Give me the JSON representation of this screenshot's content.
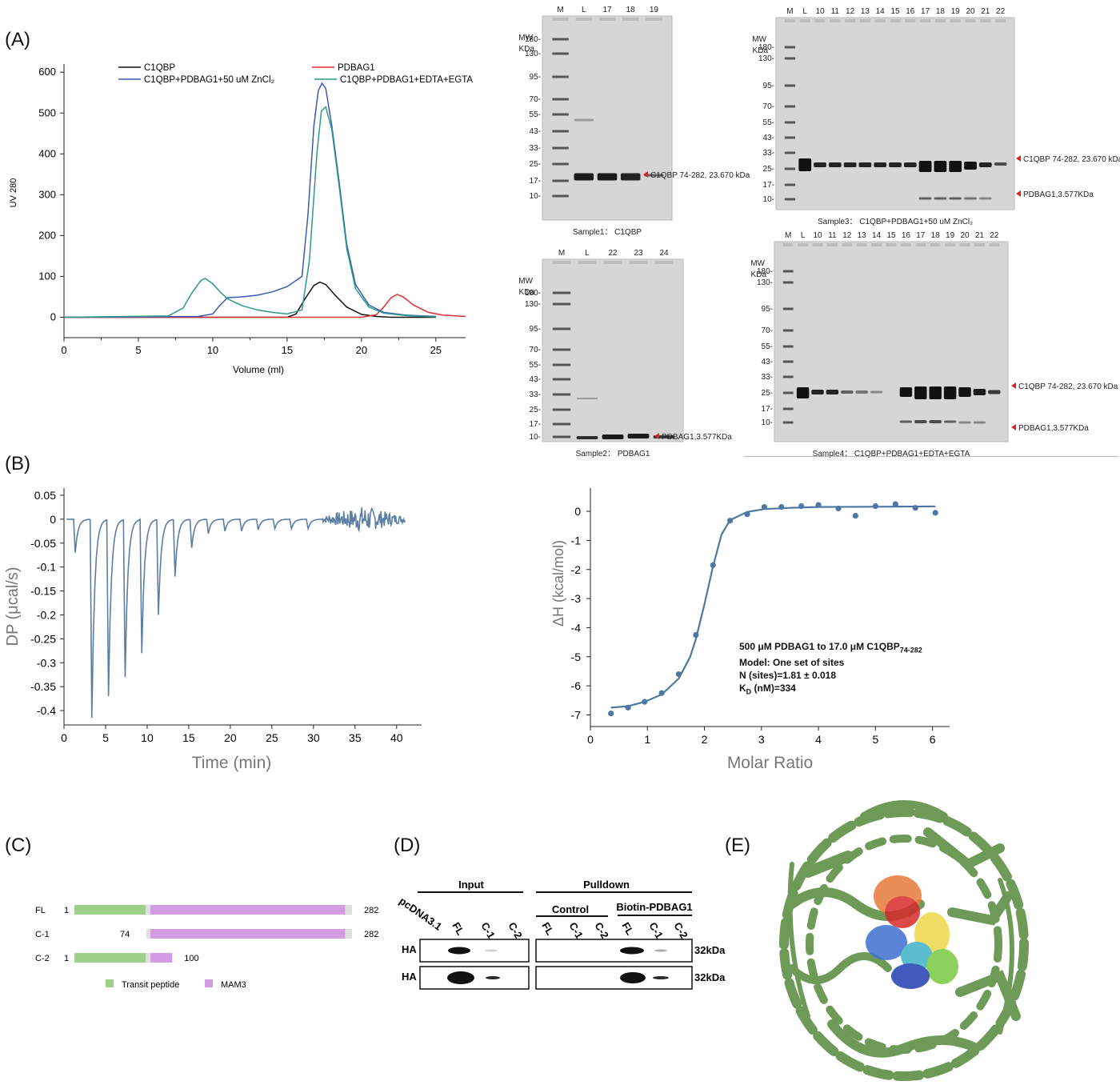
{
  "panels": {
    "A": "(A)",
    "B": "(B)",
    "C": "(C)",
    "D": "(D)",
    "E": "(E)"
  },
  "panel_a": {
    "legend": [
      "C1QBP",
      "PDBAG1",
      "C1QBP+PDBAG1+50 uM ZnCl₂",
      "C1QBP+PDBAG1+EDTA+EGTA"
    ],
    "colors": {
      "c1qbp": "#111111",
      "pdbag1": "#e03030",
      "zn": "#3a5bb5",
      "edta": "#2a9a8a"
    }
  },
  "gels": {
    "mw_header": "MW",
    "kda_header": "KDa",
    "gel1": {
      "lanes": [
        "M",
        "L",
        "17",
        "18",
        "19"
      ],
      "mw": [
        "180-",
        "130-",
        "95-",
        "70-",
        "55-",
        "43-",
        "33-",
        "25-",
        "17-",
        "10-"
      ],
      "annot": [
        "C1QBP 74-282, 23.670 kDa"
      ],
      "caption": "Sample1： C1QBP"
    },
    "gel2": {
      "lanes": [
        "M",
        "L",
        "22",
        "23",
        "24"
      ],
      "mw": [
        "180-",
        "130-",
        "95-",
        "70-",
        "55-",
        "43-",
        "33-",
        "25-",
        "17-",
        "10-"
      ],
      "annot": [
        "PDBAG1,3.577KDa"
      ],
      "caption": "Sample2： PDBAG1"
    },
    "gel3": {
      "lanes": [
        "M",
        "L",
        "10",
        "11",
        "12",
        "13",
        "14",
        "15",
        "16",
        "17",
        "18",
        "19",
        "20",
        "21",
        "22"
      ],
      "mw": [
        "180-",
        "130-",
        "95-",
        "70-",
        "55-",
        "43-",
        "33-",
        "25-",
        "17-",
        "10-"
      ],
      "annot": [
        "C1QBP 74-282, 23.670 kDa",
        "PDBAG1,3.577KDa"
      ],
      "caption": "Sample3： C1QBP+PDBAG1+50 uM ZnCl₂"
    },
    "gel4": {
      "lanes": [
        "M",
        "L",
        "10",
        "11",
        "12",
        "13",
        "14",
        "15",
        "16",
        "17",
        "18",
        "19",
        "20",
        "21",
        "22"
      ],
      "mw": [
        "180-",
        "130-",
        "95-",
        "70-",
        "55-",
        "43-",
        "33-",
        "25-",
        "17-",
        "10-"
      ],
      "annot": [
        "C1QBP 74-282, 23.670 kDa",
        "PDBAG1,3.577KDa"
      ],
      "caption": "Sample4： C1QBP+PDBAG1+EDTA+EGTA"
    }
  },
  "itc": {
    "annot_line1_a": "500 μM PDBAG1 to 17.0 μM C1QBP",
    "annot_line1_sub": "74-282",
    "annot_line2": "Model: One set of sites",
    "annot_line3": "N (sites)=1.81 ± 0.018",
    "annot_line4_k": "K",
    "annot_line4_sub": "D",
    "annot_line4_rest": " (nM)=334"
  },
  "panel_c": {
    "rows": [
      {
        "label": "FL",
        "start": "1",
        "end": "282"
      },
      {
        "label": "C-1",
        "start": "74",
        "end": "282"
      },
      {
        "label": "C-2",
        "start": "1",
        "end": "100"
      }
    ],
    "legend": [
      "Transit peptide",
      "MAM3"
    ],
    "colors": {
      "transit": "#9dd18a",
      "mam3": "#d39be3",
      "linker": "#dedede"
    }
  },
  "panel_d": {
    "input": "Input",
    "pulldown": "Pulldown",
    "control": "Control",
    "biotin": "Biotin-PDBAG1",
    "pcdna": "pcDNA3.1",
    "lanes": [
      "FL",
      "C-1",
      "C-2",
      "FL",
      "C-1",
      "C-2",
      "FL",
      "C-1",
      "C-2"
    ],
    "rows": [
      "HA",
      "HA"
    ],
    "kda": [
      "32kDa",
      "32kDa"
    ]
  },
  "chart_data": [
    {
      "type": "line",
      "panel": "A",
      "xlabel": "Volume (ml)",
      "ylabel": "UV 280",
      "xlim": [
        0,
        27
      ],
      "ylim": [
        -50,
        620
      ],
      "xticks": [
        0,
        5,
        10,
        15,
        20,
        25
      ],
      "yticks": [
        0,
        100,
        200,
        300,
        400,
        500,
        600
      ],
      "legend_position": "top",
      "series": [
        {
          "name": "C1QBP",
          "color": "#111111",
          "x": [
            0,
            15,
            15.6,
            16.2,
            16.8,
            17.2,
            17.6,
            18.2,
            19,
            20,
            21,
            22,
            24,
            25
          ],
          "y": [
            0,
            0,
            8,
            45,
            78,
            86,
            80,
            55,
            25,
            7,
            2,
            0,
            0,
            0
          ]
        },
        {
          "name": "PDBAG1",
          "color": "#e03030",
          "x": [
            0,
            20,
            21,
            21.5,
            22,
            22.4,
            22.8,
            23.5,
            24.5,
            25.5,
            27
          ],
          "y": [
            0,
            0,
            6,
            25,
            48,
            56,
            50,
            30,
            12,
            5,
            2
          ]
        },
        {
          "name": "C1QBP+PDBAG1+50 uM ZnCl₂",
          "color": "#3a5bb5",
          "x": [
            0,
            9,
            10,
            10.5,
            11,
            12,
            13,
            14,
            15,
            16,
            16.4,
            16.8,
            17.1,
            17.35,
            17.6,
            18,
            18.5,
            19,
            19.6,
            20.5,
            21.5,
            23,
            25
          ],
          "y": [
            0,
            2,
            8,
            30,
            48,
            50,
            54,
            62,
            75,
            100,
            250,
            470,
            555,
            573,
            560,
            470,
            330,
            180,
            80,
            30,
            12,
            5,
            2
          ]
        },
        {
          "name": "C1QBP+PDBAG1+EDTA+EGTA",
          "color": "#2a9a8a",
          "x": [
            0,
            7,
            8,
            8.6,
            9.2,
            9.5,
            10,
            10.5,
            11,
            12,
            13,
            14,
            15,
            16,
            16.5,
            17,
            17.3,
            17.6,
            18,
            18.5,
            19,
            19.6,
            20.5,
            21.5,
            23,
            25
          ],
          "y": [
            0,
            3,
            22,
            60,
            90,
            95,
            82,
            62,
            45,
            28,
            18,
            12,
            8,
            18,
            140,
            400,
            505,
            515,
            460,
            320,
            170,
            70,
            25,
            10,
            4,
            1
          ]
        }
      ]
    },
    {
      "type": "line",
      "panel": "B-left",
      "xlabel": "Time (min)",
      "ylabel": "DP (μcal/s)",
      "xlim": [
        0,
        43
      ],
      "ylim": [
        -0.43,
        0.065
      ],
      "xticks": [
        0,
        5,
        10,
        15,
        20,
        25,
        30,
        35,
        40
      ],
      "yticks": [
        0.05,
        0,
        -0.05,
        -0.1,
        -0.15,
        -0.2,
        -0.25,
        -0.3,
        -0.35,
        -0.4
      ],
      "ytick_labels": [
        "0.05",
        "0",
        "-0.05",
        "-0.1",
        "-0.15",
        "-0.2",
        "-0.25",
        "-0.3",
        "-0.35",
        "-0.4"
      ],
      "color": "#5b7ea3",
      "injections": [
        {
          "t": 1.2,
          "dp": -0.07
        },
        {
          "t": 3.2,
          "dp": -0.415
        },
        {
          "t": 5.2,
          "dp": -0.37
        },
        {
          "t": 7.2,
          "dp": -0.33
        },
        {
          "t": 9.2,
          "dp": -0.28
        },
        {
          "t": 11.2,
          "dp": -0.2
        },
        {
          "t": 13.2,
          "dp": -0.12
        },
        {
          "t": 15.2,
          "dp": -0.06
        },
        {
          "t": 17.2,
          "dp": -0.03
        },
        {
          "t": 19.2,
          "dp": -0.025
        },
        {
          "t": 21.2,
          "dp": -0.025
        },
        {
          "t": 23.2,
          "dp": -0.022
        },
        {
          "t": 25.2,
          "dp": -0.02
        },
        {
          "t": 27.2,
          "dp": -0.02
        },
        {
          "t": 29.2,
          "dp": -0.02
        }
      ],
      "noise_region": [
        31,
        41
      ]
    },
    {
      "type": "scatter",
      "panel": "B-right",
      "xlabel": "Molar Ratio",
      "ylabel": "ΔH (kcal/mol)",
      "xlim": [
        0,
        6.3
      ],
      "ylim": [
        -7.4,
        0.8
      ],
      "xticks": [
        0,
        1,
        2,
        3,
        4,
        5,
        6
      ],
      "yticks": [
        0,
        -1,
        -2,
        -3,
        -4,
        -5,
        -6,
        -7
      ],
      "point_color": "#4e77a3",
      "points": [
        {
          "x": 0.36,
          "y": -6.95
        },
        {
          "x": 0.66,
          "y": -6.75
        },
        {
          "x": 0.95,
          "y": -6.55
        },
        {
          "x": 1.25,
          "y": -6.25
        },
        {
          "x": 1.55,
          "y": -5.6
        },
        {
          "x": 1.85,
          "y": -4.25
        },
        {
          "x": 2.15,
          "y": -1.85
        },
        {
          "x": 2.45,
          "y": -0.32
        },
        {
          "x": 2.75,
          "y": -0.1
        },
        {
          "x": 3.05,
          "y": 0.15
        },
        {
          "x": 3.35,
          "y": 0.15
        },
        {
          "x": 3.7,
          "y": 0.18
        },
        {
          "x": 4.0,
          "y": 0.22
        },
        {
          "x": 4.35,
          "y": 0.1
        },
        {
          "x": 4.65,
          "y": -0.15
        },
        {
          "x": 5.0,
          "y": 0.18
        },
        {
          "x": 5.35,
          "y": 0.25
        },
        {
          "x": 5.7,
          "y": 0.12
        },
        {
          "x": 6.05,
          "y": -0.05
        }
      ],
      "fit": {
        "x": [
          0.36,
          0.66,
          0.95,
          1.25,
          1.55,
          1.75,
          1.85,
          2.0,
          2.15,
          2.3,
          2.45,
          2.75,
          3.05,
          3.5,
          4.0,
          5.0,
          6.05
        ],
        "y": [
          -6.75,
          -6.7,
          -6.55,
          -6.3,
          -5.75,
          -5.0,
          -4.4,
          -3.2,
          -1.9,
          -0.8,
          -0.3,
          -0.02,
          0.08,
          0.12,
          0.15,
          0.16,
          0.17
        ]
      }
    }
  ]
}
